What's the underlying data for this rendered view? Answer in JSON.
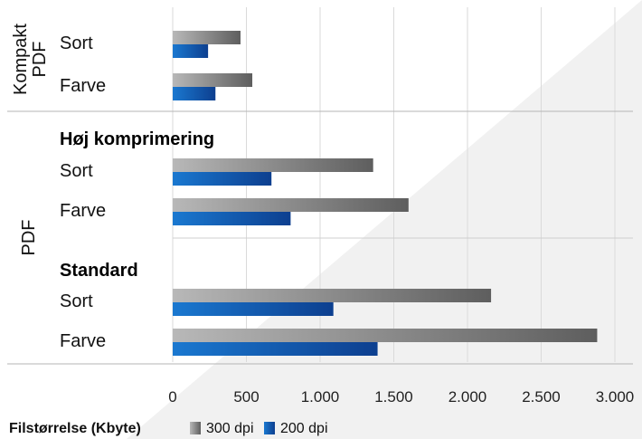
{
  "chart_data": {
    "type": "bar",
    "orientation": "horizontal",
    "axis_label": "Filstørrelse (Kbyte)",
    "xlim": [
      0,
      3000
    ],
    "x_ticks": [
      "0",
      "500",
      "1.000",
      "1.500",
      "2.000",
      "2.500",
      "3.000"
    ],
    "x_tick_values": [
      0,
      500,
      1000,
      1500,
      2000,
      2500,
      3000
    ],
    "grid": true,
    "legend_position": "bottom",
    "series": [
      {
        "name": "300 dpi",
        "color": "#7a7a7a"
      },
      {
        "name": "200 dpi",
        "color": "#1d5fb4"
      }
    ],
    "groups": [
      {
        "label": "Kompakt PDF",
        "sections": [
          {
            "heading": "",
            "rows": [
              {
                "label": "Sort",
                "values": [
                  460,
                  240
                ]
              },
              {
                "label": "Farve",
                "values": [
                  540,
                  290
                ]
              }
            ]
          }
        ]
      },
      {
        "label": "PDF",
        "sections": [
          {
            "heading": "Høj komprimering",
            "rows": [
              {
                "label": "Sort",
                "values": [
                  1360,
                  670
                ]
              },
              {
                "label": "Farve",
                "values": [
                  1600,
                  800
                ]
              }
            ]
          },
          {
            "heading": "Standard",
            "rows": [
              {
                "label": "Sort",
                "values": [
                  2160,
                  1090
                ]
              },
              {
                "label": "Farve",
                "values": [
                  2880,
                  1390
                ]
              }
            ]
          }
        ]
      }
    ]
  }
}
